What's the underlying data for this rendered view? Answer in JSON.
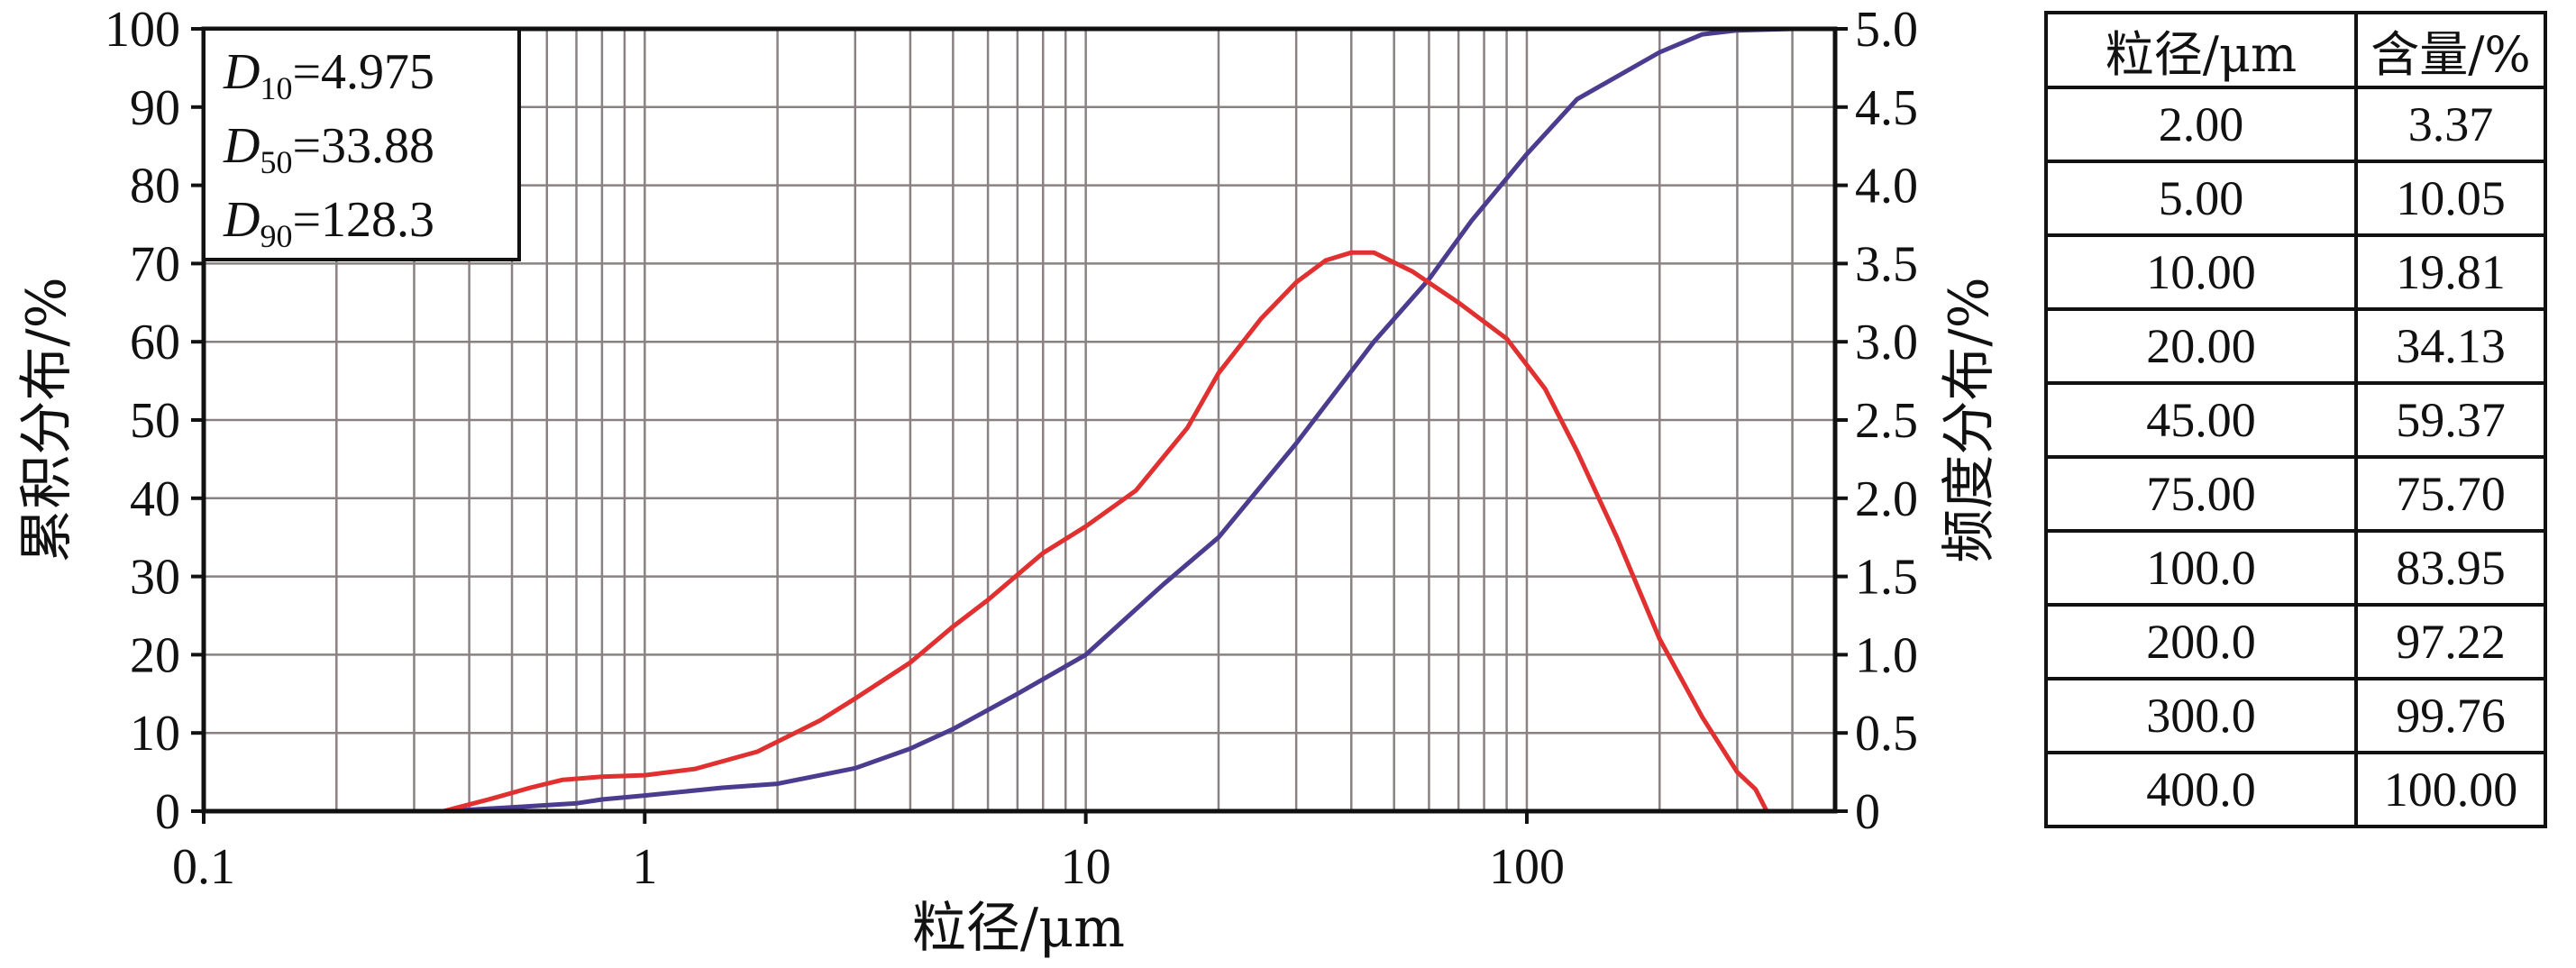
{
  "chart_data": {
    "type": "line",
    "x_scale": "log",
    "xlim": [
      0.1,
      500
    ],
    "ylim_left": [
      0,
      100
    ],
    "ylim_right": [
      0,
      5.0
    ],
    "xlabel": "粒径/μm",
    "ylabel_left": "累积分布/%",
    "ylabel_right": "频度分布/%",
    "x_ticks": [
      "0.1",
      "1",
      "10",
      "100"
    ],
    "y_left_ticks": [
      "0",
      "10",
      "20",
      "30",
      "40",
      "50",
      "60",
      "70",
      "80",
      "90",
      "100"
    ],
    "y_right_ticks": [
      "0",
      "0.5",
      "1.0",
      "1.5",
      "2.0",
      "2.5",
      "3.0",
      "3.5",
      "4.0",
      "4.5",
      "5.0"
    ],
    "grid": true,
    "annotations": {
      "d10": {
        "sym": "D",
        "sub": "10",
        "value": "=4.975"
      },
      "d50": {
        "sym": "D",
        "sub": "50",
        "value": "=33.88"
      },
      "d90": {
        "sym": "D",
        "sub": "90",
        "value": "=128.3"
      }
    },
    "series": [
      {
        "axis": "left",
        "color": "#4b3c8f",
        "x": [
          0.35,
          0.5,
          0.7,
          0.8,
          1.0,
          1.5,
          2.0,
          3.0,
          4.0,
          5.0,
          7.0,
          10,
          15,
          20,
          30,
          45,
          60,
          75,
          100,
          130,
          200,
          250,
          300,
          400
        ],
        "y": [
          0,
          0.5,
          1,
          1.5,
          2,
          3,
          3.5,
          5.5,
          8,
          10.5,
          15,
          20,
          29,
          35,
          47,
          60,
          68,
          75.5,
          84,
          91,
          97,
          99.3,
          99.8,
          100
        ]
      },
      {
        "axis": "right",
        "color": "#e03030",
        "x": [
          0.35,
          0.45,
          0.55,
          0.65,
          0.8,
          1.0,
          1.3,
          1.8,
          2.5,
          3.0,
          4.0,
          5.0,
          6.0,
          8.0,
          10,
          13,
          17,
          20,
          25,
          30,
          35,
          40,
          45,
          55,
          70,
          90,
          110,
          130,
          160,
          200,
          250,
          300,
          330,
          350
        ],
        "y": [
          0.0,
          0.08,
          0.15,
          0.2,
          0.22,
          0.23,
          0.27,
          0.38,
          0.58,
          0.72,
          0.95,
          1.18,
          1.35,
          1.65,
          1.82,
          2.05,
          2.45,
          2.8,
          3.15,
          3.38,
          3.52,
          3.57,
          3.57,
          3.45,
          3.25,
          3.02,
          2.7,
          2.3,
          1.75,
          1.1,
          0.6,
          0.25,
          0.14,
          0.0
        ]
      }
    ],
    "table": {
      "headers": [
        "粒径/μm",
        "含量/%"
      ],
      "rows": [
        [
          "2.00",
          "3.37"
        ],
        [
          "5.00",
          "10.05"
        ],
        [
          "10.00",
          "19.81"
        ],
        [
          "20.00",
          "34.13"
        ],
        [
          "45.00",
          "59.37"
        ],
        [
          "75.00",
          "75.70"
        ],
        [
          "100.0",
          "83.95"
        ],
        [
          "200.0",
          "97.22"
        ],
        [
          "300.0",
          "99.76"
        ],
        [
          "400.0",
          "100.00"
        ]
      ]
    }
  }
}
